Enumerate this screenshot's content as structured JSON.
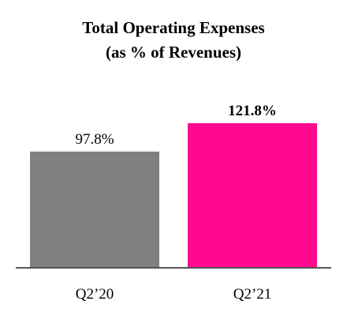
{
  "chart_data": {
    "type": "bar",
    "title_line1": "Total Operating Expenses",
    "title_line2": "(as % of Revenues)",
    "categories": [
      "Q2’20",
      "Q2’21"
    ],
    "values": [
      97.8,
      121.8
    ],
    "data_labels": [
      "97.8%",
      "121.8%"
    ],
    "bold_labels": [
      false,
      true
    ],
    "colors": [
      "#808080",
      "#FF0A8F"
    ],
    "xlabel": "",
    "ylabel": "",
    "ylim": [
      0,
      121.8
    ],
    "grid": false,
    "legend": "none"
  }
}
